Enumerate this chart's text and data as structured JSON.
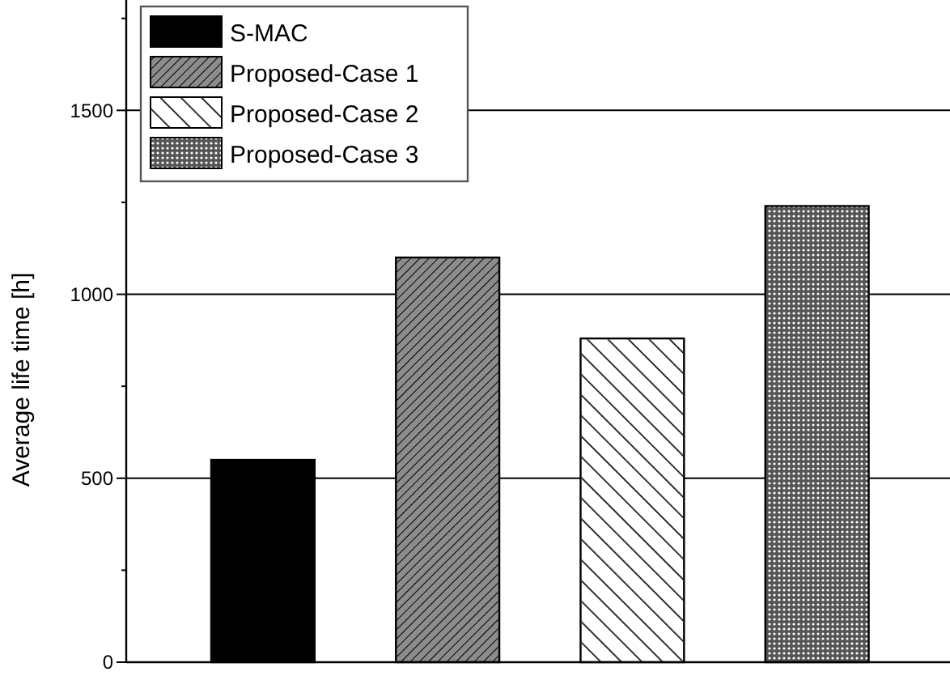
{
  "chart_data": {
    "type": "bar",
    "ylabel": "Average life time [h]",
    "categories": [
      null,
      null,
      null,
      null
    ],
    "series": [
      {
        "name": "S-MAC",
        "color": "#000000",
        "values": [
          550,
          null,
          null,
          null
        ]
      },
      {
        "name": "Proposed-Case 1",
        "color": "#8c8c8c",
        "values": [
          null,
          1100,
          null,
          null
        ]
      },
      {
        "name": "Proposed-Case 2",
        "color": "#ffffff",
        "values": [
          null,
          null,
          880,
          null
        ]
      },
      {
        "name": "Proposed-Case 3",
        "color": "#555555",
        "values": [
          null,
          null,
          null,
          1240
        ]
      }
    ],
    "ylim": [
      0,
      1800
    ],
    "yticks": [
      0,
      {
        "value": 250,
        "label": null
      },
      500,
      {
        "value": 750,
        "label": null
      },
      1000,
      {
        "value": 1250,
        "label": null
      },
      1500,
      {
        "value": 1750,
        "label": null
      }
    ],
    "grid": "y",
    "legend": "top left"
  }
}
